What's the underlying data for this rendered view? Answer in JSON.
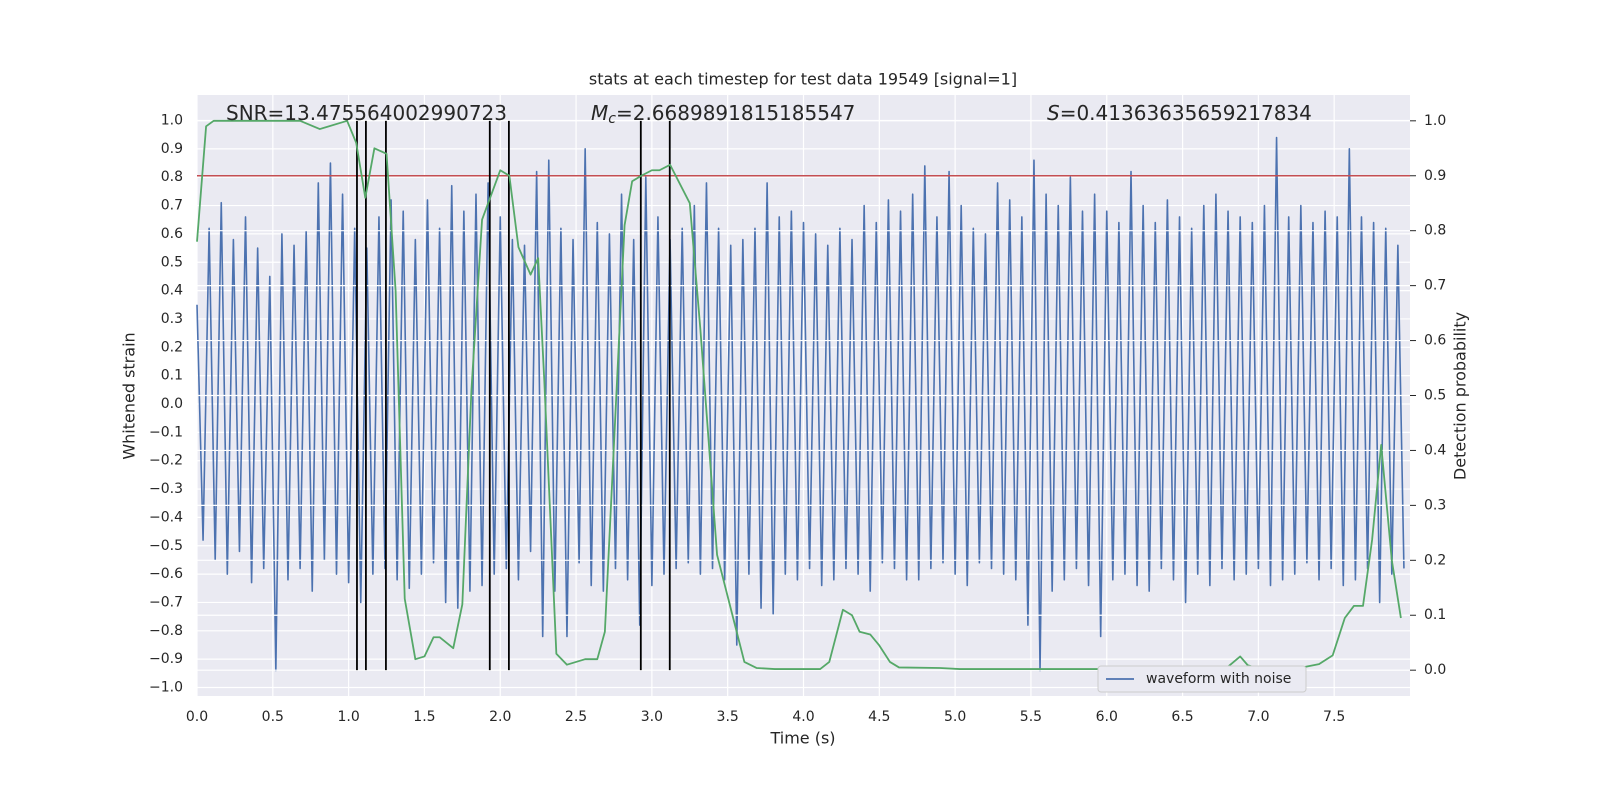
{
  "chart_data": {
    "type": "line",
    "title": "stats at each timestep for test data 19549 [signal=1]",
    "xlabel": "Time (s)",
    "ylabel": "Whitened strain",
    "y2label": "Detection probability",
    "xlim": [
      0,
      8.0
    ],
    "ylim": [
      -1.03,
      1.09
    ],
    "y2lim": [
      -0.047,
      1.047
    ],
    "xticks": [
      {
        "value": 0,
        "label": "0.0"
      },
      0.5,
      {
        "value": 1,
        "label": "1.0"
      },
      1.5,
      {
        "value": 2,
        "label": "2.0"
      },
      2.5,
      {
        "value": 3,
        "label": "3.0"
      },
      3.5,
      {
        "value": 4,
        "label": "4.0"
      },
      4.5,
      {
        "value": 5,
        "label": "5.0"
      },
      5.5,
      {
        "value": 6,
        "label": "6.0"
      },
      6.5,
      {
        "value": 7,
        "label": "7.0"
      },
      7.5
    ],
    "yticks": [
      {
        "value": -1,
        "label": "−1.0"
      },
      {
        "value": -0.9,
        "label": "−0.9"
      },
      {
        "value": -0.8,
        "label": "−0.8"
      },
      {
        "value": -0.7,
        "label": "−0.7"
      },
      {
        "value": -0.6,
        "label": "−0.6"
      },
      {
        "value": -0.5,
        "label": "−0.5"
      },
      {
        "value": -0.4,
        "label": "−0.4"
      },
      {
        "value": -0.3,
        "label": "−0.3"
      },
      {
        "value": -0.2,
        "label": "−0.2"
      },
      {
        "value": -0.1,
        "label": "−0.1"
      },
      {
        "value": 0,
        "label": "0.0"
      },
      0.1,
      0.2,
      0.3,
      0.4,
      0.5,
      0.6,
      0.7,
      0.8,
      0.9,
      {
        "value": 1,
        "label": "1.0"
      }
    ],
    "y2ticks": [
      {
        "value": 0,
        "label": "0.0"
      },
      0.1,
      0.2,
      0.3,
      0.4,
      0.5,
      0.6,
      0.7,
      0.8,
      0.9,
      {
        "value": 1,
        "label": "1.0"
      }
    ],
    "grid": true,
    "legend": "lower right",
    "annotations": [
      [
        {
          "text": "SNR=13.475564002990723",
          "style": "normal"
        }
      ],
      [
        {
          "text": "M",
          "style": "italic"
        },
        {
          "text": "c",
          "style": "sub"
        },
        {
          "text": "=2.6689891815185547",
          "style": "normal"
        }
      ],
      [
        {
          "text": "S",
          "style": "italic"
        },
        {
          "text": "=0.41363635659217834",
          "style": "normal"
        }
      ]
    ],
    "series": [
      {
        "name": "waveform with noise",
        "color": "#4c72b0",
        "axis": "y",
        "x": [
          0,
          0.04,
          0.08,
          0.12,
          0.16,
          0.2,
          0.24,
          0.28,
          0.32,
          0.36,
          0.4,
          0.44,
          0.48,
          0.52,
          0.56,
          0.6,
          0.64,
          0.68,
          0.72,
          0.76,
          0.8,
          0.84,
          0.88,
          0.92,
          0.96,
          1,
          1.04,
          1.08,
          1.12,
          1.16,
          1.2,
          1.24,
          1.28,
          1.32,
          1.36,
          1.4,
          1.44,
          1.48,
          1.52,
          1.56,
          1.6,
          1.64,
          1.68,
          1.72,
          1.76,
          1.8,
          1.84,
          1.88,
          1.92,
          1.96,
          2,
          2.04,
          2.08,
          2.12,
          2.16,
          2.2,
          2.24,
          2.28,
          2.32,
          2.36,
          2.4,
          2.44,
          2.48,
          2.52,
          2.56,
          2.6,
          2.64,
          2.68,
          2.72,
          2.76,
          2.8,
          2.84,
          2.88,
          2.92,
          2.96,
          3,
          3.04,
          3.08,
          3.12,
          3.16,
          3.2,
          3.24,
          3.28,
          3.32,
          3.36,
          3.4,
          3.44,
          3.48,
          3.52,
          3.56,
          3.6,
          3.64,
          3.68,
          3.72,
          3.76,
          3.8,
          3.84,
          3.88,
          3.92,
          3.96,
          4,
          4.04,
          4.08,
          4.12,
          4.16,
          4.2,
          4.24,
          4.28,
          4.32,
          4.36,
          4.4,
          4.44,
          4.48,
          4.52,
          4.56,
          4.6,
          4.64,
          4.68,
          4.72,
          4.76,
          4.8,
          4.84,
          4.88,
          4.92,
          4.96,
          5,
          5.04,
          5.08,
          5.12,
          5.16,
          5.2,
          5.24,
          5.28,
          5.32,
          5.36,
          5.4,
          5.44,
          5.48,
          5.52,
          5.56,
          5.6,
          5.64,
          5.68,
          5.72,
          5.76,
          5.8,
          5.84,
          5.88,
          5.92,
          5.96,
          6,
          6.04,
          6.08,
          6.12,
          6.16,
          6.2,
          6.24,
          6.28,
          6.32,
          6.36,
          6.4,
          6.44,
          6.48,
          6.52,
          6.56,
          6.6,
          6.64,
          6.68,
          6.72,
          6.76,
          6.8,
          6.84,
          6.88,
          6.92,
          6.96,
          7,
          7.04,
          7.08,
          7.12,
          7.16,
          7.2,
          7.24,
          7.28,
          7.32,
          7.36,
          7.4,
          7.44,
          7.48,
          7.52,
          7.56,
          7.6,
          7.64,
          7.68,
          7.72,
          7.76,
          7.8,
          7.84,
          7.88,
          7.92,
          7.96
        ],
        "values": [
          0.35,
          -0.48,
          0.62,
          -0.55,
          0.71,
          -0.6,
          0.58,
          -0.52,
          0.66,
          -0.63,
          0.55,
          -0.58,
          0.45,
          -0.94,
          0.6,
          -0.62,
          0.56,
          -0.58,
          0.61,
          -0.66,
          0.78,
          -0.55,
          0.85,
          -0.6,
          0.74,
          -0.63,
          0.62,
          -0.7,
          0.55,
          -0.6,
          0.66,
          -0.58,
          0.72,
          -0.62,
          0.68,
          -0.65,
          0.58,
          -0.6,
          0.72,
          -0.56,
          0.62,
          -0.7,
          0.77,
          -0.72,
          0.68,
          -0.66,
          0.74,
          -0.64,
          0.78,
          -0.6,
          0.66,
          -0.58,
          0.58,
          -0.62,
          0.56,
          -0.52,
          0.82,
          -0.82,
          0.86,
          -0.66,
          0.62,
          -0.82,
          0.58,
          -0.56,
          0.9,
          -0.64,
          0.64,
          -0.66,
          0.6,
          -0.58,
          0.74,
          -0.62,
          0.58,
          -0.78,
          0.8,
          -0.64,
          0.66,
          -0.6,
          0.58,
          -0.58,
          0.62,
          -0.56,
          0.7,
          -0.6,
          0.78,
          -0.58,
          0.62,
          -0.62,
          0.56,
          -0.85,
          0.58,
          -0.6,
          0.62,
          -0.72,
          0.78,
          -0.74,
          0.66,
          -0.6,
          0.68,
          -0.62,
          0.64,
          -0.58,
          0.6,
          -0.64,
          0.56,
          -0.62,
          0.62,
          -0.58,
          0.58,
          -0.6,
          0.7,
          -0.66,
          0.64,
          -0.56,
          0.72,
          -0.58,
          0.68,
          -0.62,
          0.74,
          -0.62,
          0.84,
          -0.58,
          0.66,
          -0.56,
          0.82,
          -0.6,
          0.7,
          -0.64,
          0.62,
          -0.56,
          0.6,
          -0.58,
          0.78,
          -0.6,
          0.72,
          -0.62,
          0.66,
          -0.78,
          0.86,
          -0.94,
          0.74,
          -0.66,
          0.7,
          -0.62,
          0.8,
          -0.58,
          0.68,
          -0.64,
          0.74,
          -0.82,
          0.68,
          -0.62,
          0.64,
          -0.6,
          0.82,
          -0.64,
          0.7,
          -0.66,
          0.64,
          -0.58,
          0.72,
          -0.62,
          0.66,
          -0.7,
          0.62,
          -0.6,
          0.7,
          -0.64,
          0.74,
          -0.58,
          0.68,
          -0.62,
          0.66,
          -0.6,
          0.64,
          -0.58,
          0.7,
          -0.64,
          0.94,
          -0.62,
          0.66,
          -0.6,
          0.7,
          -0.56,
          0.64,
          -0.62,
          0.68,
          -0.58,
          0.66,
          -0.64,
          0.9,
          -0.62,
          0.66,
          -0.58,
          0.64,
          -0.7,
          0.62,
          -0.6,
          0.56,
          -0.58
        ]
      },
      {
        "color": "#55a868",
        "axis": "y2",
        "x": [
          0,
          0.06,
          0.11,
          0.68,
          0.81,
          0.99,
          1.05,
          1.11,
          1.17,
          1.25,
          1.31,
          1.37,
          1.44,
          1.5,
          1.56,
          1.6,
          1.69,
          1.75,
          1.81,
          1.88,
          2,
          2.06,
          2.12,
          2.2,
          2.25,
          2.29,
          2.37,
          2.44,
          2.56,
          2.64,
          2.69,
          2.82,
          2.87,
          2.93,
          3,
          3.05,
          3.12,
          3.25,
          3.32,
          3.43,
          3.55,
          3.61,
          3.69,
          3.81,
          4.11,
          4.17,
          4.26,
          4.32,
          4.37,
          4.44,
          4.5,
          4.57,
          4.63,
          4.9,
          5.03,
          6.48,
          6.68,
          6.79,
          6.88,
          6.93,
          6.99,
          7.14,
          7.27,
          7.4,
          7.49,
          7.57,
          7.63,
          7.69,
          7.75,
          7.81,
          7.88,
          7.94
        ],
        "values": [
          0.78,
          0.99,
          1,
          1,
          0.985,
          1,
          0.96,
          0.86,
          0.95,
          0.94,
          0.69,
          0.13,
          0.02,
          0.025,
          0.06,
          0.06,
          0.04,
          0.12,
          0.51,
          0.82,
          0.91,
          0.9,
          0.77,
          0.72,
          0.75,
          0.53,
          0.03,
          0.01,
          0.02,
          0.02,
          0.07,
          0.81,
          0.89,
          0.9,
          0.91,
          0.91,
          0.92,
          0.85,
          0.62,
          0.21,
          0.08,
          0.015,
          0.004,
          0.002,
          0.002,
          0.015,
          0.11,
          0.1,
          0.07,
          0.065,
          0.045,
          0.015,
          0.005,
          0.004,
          0.002,
          0.002,
          0.004,
          0.004,
          0.025,
          0.009,
          0.004,
          0.005,
          0.004,
          0.011,
          0.027,
          0.095,
          0.117,
          0.117,
          0.237,
          0.41,
          0.2,
          0.095
        ]
      }
    ],
    "hline": {
      "y": 0.9,
      "axis": "y2",
      "color": "#c44e52"
    },
    "vlines": {
      "x": [
        1.055,
        1.114,
        1.246,
        1.931,
        2.057,
        2.927,
        3.118
      ],
      "ymin": 0,
      "ymax": 1,
      "axis": "y2",
      "color": "#000000"
    }
  }
}
